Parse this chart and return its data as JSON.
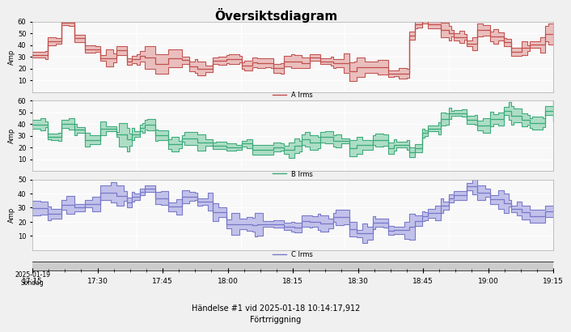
{
  "title": "Översiktsdiagram",
  "subtitle": "Händelse #1 vid 2025-01-18 10:14:17,912\nFörtrriggning",
  "xlabel_first": "17:15\n2025-01-19\nSöndag",
  "x_ticks": [
    "17:15",
    "17:30",
    "17:45",
    "18:00",
    "18:15",
    "18:30",
    "18:45",
    "19:00",
    "19:15"
  ],
  "x_tick_count": 9,
  "phases": [
    {
      "label": "A Irms",
      "color_line": "#c0504d",
      "color_fill": "#e8b4b3",
      "ylim": [
        0,
        60
      ],
      "yticks": [
        10,
        20,
        30,
        40,
        50,
        60
      ],
      "ylabel": "Amp"
    },
    {
      "label": "B Irms",
      "color_line": "#3aaa7a",
      "color_fill": "#a0d9bc",
      "ylim": [
        0,
        60
      ],
      "yticks": [
        10,
        20,
        30,
        40,
        50,
        60
      ],
      "ylabel": "Amp"
    },
    {
      "label": "C Irms",
      "color_line": "#7878c8",
      "color_fill": "#b8b8e8",
      "ylim": [
        0,
        50
      ],
      "yticks": [
        10,
        20,
        30,
        40,
        50
      ],
      "ylabel": "Amp"
    }
  ],
  "plot_bg": "#f8f8f8",
  "fig_bg": "#f0f0f0",
  "grid_color": "#ffffff",
  "n_points": 200
}
